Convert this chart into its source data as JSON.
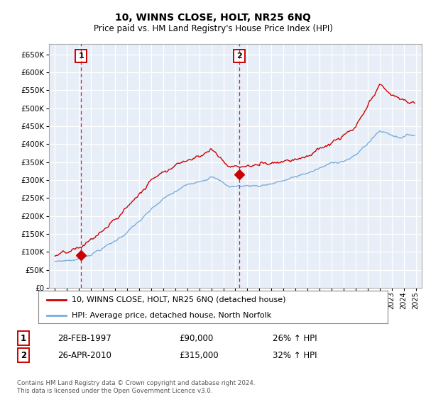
{
  "title": "10, WINNS CLOSE, HOLT, NR25 6NQ",
  "subtitle": "Price paid vs. HM Land Registry's House Price Index (HPI)",
  "background_color": "#e8eef8",
  "plot_bg_color": "#e8eef8",
  "grid_color": "#ffffff",
  "ylim": [
    0,
    680000
  ],
  "yticks": [
    0,
    50000,
    100000,
    150000,
    200000,
    250000,
    300000,
    350000,
    400000,
    450000,
    500000,
    550000,
    600000,
    650000
  ],
  "xlim_start": 1994.5,
  "xlim_end": 2025.5,
  "sale1_year": 1997.17,
  "sale1_price": 90000,
  "sale1_label": "1",
  "sale2_year": 2010.33,
  "sale2_price": 315000,
  "sale2_label": "2",
  "legend_line1": "10, WINNS CLOSE, HOLT, NR25 6NQ (detached house)",
  "legend_line2": "HPI: Average price, detached house, North Norfolk",
  "footer": "Contains HM Land Registry data © Crown copyright and database right 2024.\nThis data is licensed under the Open Government Licence v3.0.",
  "table_row1": [
    "1",
    "28-FEB-1997",
    "£90,000",
    "26% ↑ HPI"
  ],
  "table_row2": [
    "2",
    "26-APR-2010",
    "£315,000",
    "32% ↑ HPI"
  ],
  "line_color_red": "#cc0000",
  "line_color_blue": "#7aadda",
  "dashed_color": "#cc0000"
}
